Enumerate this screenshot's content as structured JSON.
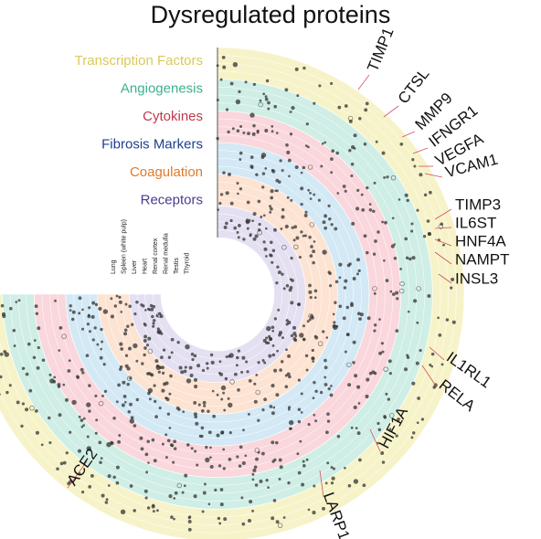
{
  "title": "Dysregulated proteins",
  "categories": [
    {
      "label": "Transcription Factors",
      "color": "#d9c95a",
      "fill": "#f7f3c9"
    },
    {
      "label": "Angiogenesis",
      "color": "#3bb08f",
      "fill": "#cfeee6"
    },
    {
      "label": "Cytokines",
      "color": "#c0394b",
      "fill": "#fad7dc"
    },
    {
      "label": "Fibrosis Markers",
      "color": "#1d3f8c",
      "fill": "#d3e9f5"
    },
    {
      "label": "Coagulation",
      "color": "#e07b29",
      "fill": "#fde3d2"
    },
    {
      "label": "Receptors",
      "color": "#4a3b8f",
      "fill": "#e4e0f2"
    }
  ],
  "tissues": [
    "Lung",
    "Spleen (white pulp)",
    "Liver",
    "Heart",
    "Renal cortex",
    "Renal medulla",
    "Testis",
    "Thyroid"
  ],
  "proteins": [
    "TIMP1",
    "CTSL",
    "MMP9",
    "IFNGR1",
    "VEGFA",
    "VCAM1",
    "TIMP3",
    "IL6ST",
    "HNF4A",
    "NAMPT",
    "INSL3",
    "IL1RL1",
    "RELA",
    "HIF1A",
    "LARP1",
    "ACE2"
  ]
}
